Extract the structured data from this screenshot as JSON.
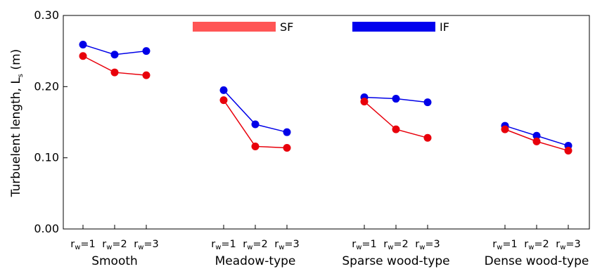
{
  "chart_data": {
    "type": "line",
    "ylabel": "Turbuelent length, L",
    "ylabel_sub": "s",
    "ylabel_unit": " (m)",
    "ylim": [
      0.0,
      0.3
    ],
    "yticks": [
      "0.00",
      "0.10",
      "0.20",
      "0.30"
    ],
    "x_tick_prefix": "r",
    "x_tick_sub": "w",
    "x_tick_values": [
      "=1",
      "=2",
      "=3"
    ],
    "groups": [
      "Smooth",
      "Meadow-type",
      "Sparse wood-type",
      "Dense wood-type"
    ],
    "series": [
      {
        "name": "SF",
        "color": "#e8000b",
        "legend_color": "#ff5555",
        "values": [
          [
            0.243,
            0.22,
            0.216
          ],
          [
            0.181,
            0.116,
            0.114
          ],
          [
            0.179,
            0.14,
            0.128
          ],
          [
            0.14,
            0.123,
            0.11
          ]
        ]
      },
      {
        "name": "IF",
        "color": "#0000e8",
        "legend_color": "#0000ee",
        "values": [
          [
            0.259,
            0.245,
            0.25
          ],
          [
            0.195,
            0.147,
            0.136
          ],
          [
            0.185,
            0.183,
            0.178
          ],
          [
            0.145,
            0.131,
            0.117
          ]
        ]
      }
    ],
    "legend_placement": "top-center",
    "grid": false
  }
}
